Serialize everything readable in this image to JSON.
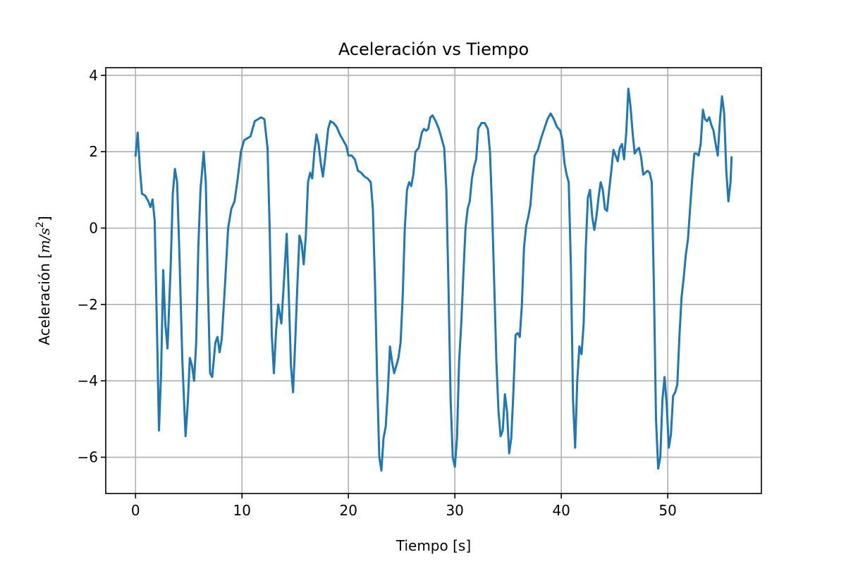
{
  "chart_data": {
    "type": "line",
    "title": "Aceleración vs Tiempo",
    "xlabel": "Tiempo [s]",
    "ylabel_prefix": "Aceleración [",
    "ylabel_unit_m": "m",
    "ylabel_unit_slash": "/",
    "ylabel_unit_s": "s",
    "ylabel_unit_exp": "2",
    "ylabel_suffix": "]",
    "xlim": [
      -2.8,
      58.8
    ],
    "ylim": [
      -6.95,
      4.2
    ],
    "xticks": [
      0,
      10,
      20,
      30,
      40,
      50
    ],
    "xtick_labels": [
      "0",
      "10",
      "20",
      "30",
      "40",
      "50"
    ],
    "yticks": [
      4,
      2,
      0,
      -2,
      -4,
      -6
    ],
    "ytick_labels": [
      "4",
      "2",
      "0",
      "−2",
      "−4",
      "−6"
    ],
    "grid": true,
    "series": [
      {
        "color": "#1f77b4",
        "points": [
          [
            0.0,
            1.9
          ],
          [
            0.2,
            2.5
          ],
          [
            0.4,
            1.6
          ],
          [
            0.6,
            0.9
          ],
          [
            0.9,
            0.85
          ],
          [
            1.2,
            0.7
          ],
          [
            1.4,
            0.55
          ],
          [
            1.6,
            0.75
          ],
          [
            1.8,
            0.2
          ],
          [
            2.0,
            -2.5
          ],
          [
            2.2,
            -5.3
          ],
          [
            2.4,
            -3.8
          ],
          [
            2.6,
            -1.1
          ],
          [
            2.8,
            -2.5
          ],
          [
            3.0,
            -3.15
          ],
          [
            3.3,
            -1.0
          ],
          [
            3.5,
            0.9
          ],
          [
            3.7,
            1.55
          ],
          [
            3.9,
            1.2
          ],
          [
            4.1,
            -0.5
          ],
          [
            4.4,
            -3.5
          ],
          [
            4.7,
            -5.45
          ],
          [
            4.9,
            -4.6
          ],
          [
            5.1,
            -3.4
          ],
          [
            5.3,
            -3.6
          ],
          [
            5.5,
            -4.0
          ],
          [
            5.7,
            -3.0
          ],
          [
            5.9,
            -0.5
          ],
          [
            6.1,
            1.0
          ],
          [
            6.4,
            2.0
          ],
          [
            6.6,
            1.2
          ],
          [
            6.8,
            -1.5
          ],
          [
            7.0,
            -3.8
          ],
          [
            7.2,
            -3.9
          ],
          [
            7.5,
            -3.0
          ],
          [
            7.7,
            -2.85
          ],
          [
            7.9,
            -3.25
          ],
          [
            8.1,
            -2.9
          ],
          [
            8.4,
            -1.5
          ],
          [
            8.7,
            0.0
          ],
          [
            9.0,
            0.5
          ],
          [
            9.3,
            0.7
          ],
          [
            9.6,
            1.3
          ],
          [
            9.9,
            2.0
          ],
          [
            10.2,
            2.3
          ],
          [
            10.5,
            2.35
          ],
          [
            10.8,
            2.4
          ],
          [
            11.0,
            2.6
          ],
          [
            11.2,
            2.8
          ],
          [
            11.5,
            2.85
          ],
          [
            11.8,
            2.9
          ],
          [
            12.1,
            2.85
          ],
          [
            12.4,
            2.1
          ],
          [
            12.6,
            0.0
          ],
          [
            12.8,
            -2.8
          ],
          [
            13.0,
            -3.8
          ],
          [
            13.2,
            -2.7
          ],
          [
            13.4,
            -2.0
          ],
          [
            13.7,
            -2.5
          ],
          [
            13.9,
            -1.6
          ],
          [
            14.2,
            -0.15
          ],
          [
            14.4,
            -1.8
          ],
          [
            14.6,
            -3.6
          ],
          [
            14.8,
            -4.3
          ],
          [
            15.0,
            -3.0
          ],
          [
            15.2,
            -1.5
          ],
          [
            15.4,
            -0.2
          ],
          [
            15.6,
            -0.4
          ],
          [
            15.8,
            -0.95
          ],
          [
            16.0,
            -0.2
          ],
          [
            16.2,
            1.2
          ],
          [
            16.4,
            1.45
          ],
          [
            16.6,
            1.3
          ],
          [
            16.8,
            2.0
          ],
          [
            17.0,
            2.45
          ],
          [
            17.2,
            2.2
          ],
          [
            17.4,
            1.7
          ],
          [
            17.6,
            1.35
          ],
          [
            17.8,
            1.8
          ],
          [
            18.1,
            2.6
          ],
          [
            18.3,
            2.8
          ],
          [
            18.6,
            2.75
          ],
          [
            18.9,
            2.65
          ],
          [
            19.2,
            2.45
          ],
          [
            19.5,
            2.3
          ],
          [
            19.8,
            2.15
          ],
          [
            20.0,
            1.9
          ],
          [
            20.3,
            1.9
          ],
          [
            20.6,
            1.8
          ],
          [
            20.9,
            1.5
          ],
          [
            21.2,
            1.45
          ],
          [
            21.5,
            1.35
          ],
          [
            21.8,
            1.3
          ],
          [
            22.1,
            1.2
          ],
          [
            22.3,
            0.5
          ],
          [
            22.5,
            -1.5
          ],
          [
            22.7,
            -4.0
          ],
          [
            22.9,
            -6.0
          ],
          [
            23.1,
            -6.35
          ],
          [
            23.3,
            -5.5
          ],
          [
            23.5,
            -5.2
          ],
          [
            23.7,
            -4.3
          ],
          [
            23.9,
            -3.1
          ],
          [
            24.1,
            -3.5
          ],
          [
            24.3,
            -3.8
          ],
          [
            24.5,
            -3.6
          ],
          [
            24.7,
            -3.4
          ],
          [
            24.9,
            -3.0
          ],
          [
            25.1,
            -1.8
          ],
          [
            25.3,
            0.0
          ],
          [
            25.5,
            1.0
          ],
          [
            25.7,
            1.2
          ],
          [
            25.9,
            1.1
          ],
          [
            26.1,
            1.4
          ],
          [
            26.3,
            2.0
          ],
          [
            26.6,
            2.1
          ],
          [
            26.9,
            2.5
          ],
          [
            27.1,
            2.6
          ],
          [
            27.3,
            2.55
          ],
          [
            27.5,
            2.6
          ],
          [
            27.7,
            2.9
          ],
          [
            27.9,
            2.95
          ],
          [
            28.2,
            2.8
          ],
          [
            28.5,
            2.6
          ],
          [
            28.8,
            2.3
          ],
          [
            29.0,
            2.1
          ],
          [
            29.2,
            1.0
          ],
          [
            29.4,
            -1.5
          ],
          [
            29.6,
            -4.5
          ],
          [
            29.8,
            -6.0
          ],
          [
            30.0,
            -6.25
          ],
          [
            30.2,
            -5.5
          ],
          [
            30.4,
            -3.5
          ],
          [
            30.6,
            -2.5
          ],
          [
            30.8,
            -1.2
          ],
          [
            31.0,
            0.0
          ],
          [
            31.2,
            0.5
          ],
          [
            31.4,
            0.7
          ],
          [
            31.6,
            1.3
          ],
          [
            31.8,
            1.6
          ],
          [
            32.0,
            1.8
          ],
          [
            32.2,
            2.6
          ],
          [
            32.5,
            2.75
          ],
          [
            32.8,
            2.75
          ],
          [
            33.1,
            2.6
          ],
          [
            33.3,
            2.0
          ],
          [
            33.5,
            0.5
          ],
          [
            33.7,
            -1.5
          ],
          [
            33.9,
            -3.5
          ],
          [
            34.1,
            -4.8
          ],
          [
            34.3,
            -5.45
          ],
          [
            34.5,
            -5.3
          ],
          [
            34.7,
            -4.35
          ],
          [
            34.9,
            -4.8
          ],
          [
            35.1,
            -5.9
          ],
          [
            35.3,
            -5.5
          ],
          [
            35.5,
            -4.3
          ],
          [
            35.7,
            -2.8
          ],
          [
            35.9,
            -2.75
          ],
          [
            36.1,
            -2.85
          ],
          [
            36.3,
            -2.0
          ],
          [
            36.5,
            -0.5
          ],
          [
            36.7,
            0.05
          ],
          [
            36.9,
            0.3
          ],
          [
            37.1,
            0.6
          ],
          [
            37.3,
            1.3
          ],
          [
            37.5,
            1.9
          ],
          [
            37.8,
            2.05
          ],
          [
            38.1,
            2.35
          ],
          [
            38.4,
            2.6
          ],
          [
            38.7,
            2.85
          ],
          [
            39.0,
            3.0
          ],
          [
            39.3,
            2.85
          ],
          [
            39.6,
            2.65
          ],
          [
            39.9,
            2.55
          ],
          [
            40.1,
            2.3
          ],
          [
            40.3,
            1.7
          ],
          [
            40.5,
            1.4
          ],
          [
            40.7,
            1.2
          ],
          [
            40.9,
            -1.0
          ],
          [
            41.1,
            -4.5
          ],
          [
            41.3,
            -5.75
          ],
          [
            41.5,
            -4.0
          ],
          [
            41.7,
            -3.1
          ],
          [
            41.9,
            -3.3
          ],
          [
            42.1,
            -2.5
          ],
          [
            42.3,
            -0.5
          ],
          [
            42.5,
            0.8
          ],
          [
            42.7,
            1.0
          ],
          [
            42.9,
            0.3
          ],
          [
            43.1,
            -0.05
          ],
          [
            43.3,
            0.3
          ],
          [
            43.5,
            0.8
          ],
          [
            43.7,
            1.2
          ],
          [
            43.9,
            1.0
          ],
          [
            44.1,
            0.5
          ],
          [
            44.3,
            0.45
          ],
          [
            44.5,
            1.0
          ],
          [
            44.7,
            1.5
          ],
          [
            44.9,
            2.05
          ],
          [
            45.1,
            1.9
          ],
          [
            45.3,
            1.75
          ],
          [
            45.5,
            2.1
          ],
          [
            45.7,
            2.2
          ],
          [
            45.9,
            1.8
          ],
          [
            46.1,
            2.5
          ],
          [
            46.3,
            3.65
          ],
          [
            46.5,
            3.2
          ],
          [
            46.7,
            2.5
          ],
          [
            46.9,
            1.95
          ],
          [
            47.1,
            2.05
          ],
          [
            47.3,
            2.1
          ],
          [
            47.5,
            1.85
          ],
          [
            47.7,
            1.4
          ],
          [
            47.9,
            1.45
          ],
          [
            48.1,
            1.5
          ],
          [
            48.3,
            1.45
          ],
          [
            48.5,
            1.2
          ],
          [
            48.7,
            -1.5
          ],
          [
            48.9,
            -5.0
          ],
          [
            49.1,
            -6.3
          ],
          [
            49.3,
            -6.0
          ],
          [
            49.5,
            -4.5
          ],
          [
            49.7,
            -3.9
          ],
          [
            49.9,
            -4.6
          ],
          [
            50.1,
            -5.75
          ],
          [
            50.3,
            -5.4
          ],
          [
            50.5,
            -4.4
          ],
          [
            50.7,
            -4.3
          ],
          [
            50.9,
            -4.1
          ],
          [
            51.1,
            -2.8
          ],
          [
            51.3,
            -1.8
          ],
          [
            51.5,
            -1.3
          ],
          [
            51.7,
            -0.7
          ],
          [
            51.9,
            -0.3
          ],
          [
            52.1,
            0.5
          ],
          [
            52.3,
            1.3
          ],
          [
            52.5,
            1.95
          ],
          [
            52.7,
            1.95
          ],
          [
            52.9,
            1.9
          ],
          [
            53.1,
            2.2
          ],
          [
            53.3,
            3.1
          ],
          [
            53.5,
            2.85
          ],
          [
            53.7,
            2.8
          ],
          [
            53.9,
            2.9
          ],
          [
            54.1,
            2.7
          ],
          [
            54.3,
            2.55
          ],
          [
            54.5,
            2.2
          ],
          [
            54.7,
            1.9
          ],
          [
            54.9,
            2.8
          ],
          [
            55.1,
            3.45
          ],
          [
            55.3,
            3.0
          ],
          [
            55.5,
            1.5
          ],
          [
            55.7,
            0.7
          ],
          [
            55.9,
            1.2
          ],
          [
            56.0,
            1.85
          ]
        ]
      }
    ]
  }
}
